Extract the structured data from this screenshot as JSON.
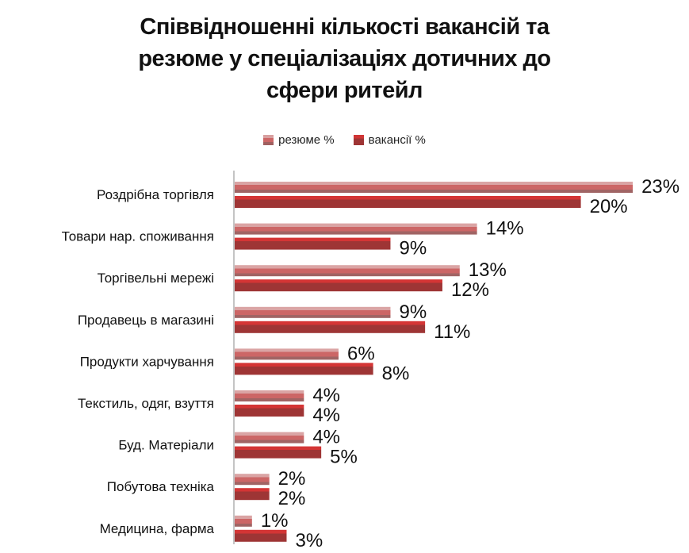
{
  "chart_data": {
    "type": "bar",
    "orientation": "horizontal",
    "title": "Співвідношенні кількості вакансій та резюме у спеціалізаціях дотичних до сфери ритейл",
    "title_lines": [
      "Співвідношенні кількості вакансій та",
      "резюме у спеціалізаціях дотичних до",
      "сфери ритейл"
    ],
    "categories": [
      "Роздрібна торгівля",
      "Товари нар. споживання",
      "Торгівельні мережі",
      "Продавець в магазині",
      "Продукти харчування",
      "Текстиль, одяг, взуття",
      "Буд. Матеріали",
      "Побутова техніка",
      "Медицина, фарма"
    ],
    "series": [
      {
        "name": "резюме %",
        "values": [
          23,
          14,
          13,
          9,
          6,
          4,
          4,
          2,
          1
        ],
        "color": "#cc6666"
      },
      {
        "name": "вакансії %",
        "values": [
          20,
          9,
          12,
          11,
          8,
          4,
          5,
          2,
          3
        ],
        "color": "#a33333"
      }
    ],
    "data_labels": true,
    "label_suffix": "%",
    "xlim": [
      0,
      23
    ],
    "grid": false,
    "legend_position": "top"
  }
}
